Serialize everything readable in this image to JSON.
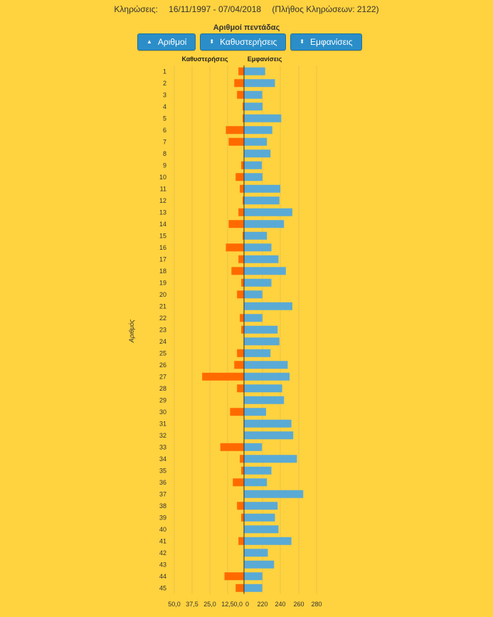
{
  "header": {
    "draws_label": "Κληρώσεις:",
    "date_range": "16/11/1997 - 07/04/2018",
    "draws_count": "(Πλήθος Κληρώσεων: 2122)"
  },
  "buttons": {
    "numbers": {
      "label": "Αριθμοί",
      "icon": "triangle-up-icon"
    },
    "delays": {
      "label": "Καθυστερήσεις",
      "icon": "sort-updown-icon"
    },
    "appearances": {
      "label": "Εμφανίσεις",
      "icon": "sort-updown-icon"
    }
  },
  "colors": {
    "background": "#ffd23f",
    "delays": "#ff6a00",
    "appearances": "#5aaad6",
    "button": "#2b8ec9"
  },
  "chart_data": {
    "type": "bar",
    "title": "Αριθμοί πεντάδας",
    "ylabel": "Αριθμός",
    "left_header": "Καθυστερήσεις",
    "right_header": "Εμφανίσεις",
    "left_ticks": [
      "50,0",
      "37,5",
      "25,0",
      "12,5",
      "0,0"
    ],
    "right_ticks": [
      "0",
      "220",
      "240",
      "260",
      "280"
    ],
    "categories": [
      "1",
      "2",
      "3",
      "4",
      "5",
      "6",
      "7",
      "8",
      "9",
      "10",
      "11",
      "12",
      "13",
      "14",
      "15",
      "16",
      "17",
      "18",
      "19",
      "20",
      "21",
      "22",
      "23",
      "24",
      "25",
      "26",
      "27",
      "28",
      "29",
      "30",
      "31",
      "32",
      "33",
      "34",
      "35",
      "36",
      "37",
      "38",
      "39",
      "40",
      "41",
      "42",
      "43",
      "44",
      "45"
    ],
    "series": [
      {
        "name": "Καθυστερήσεις",
        "values": [
          4,
          7,
          5,
          1,
          1,
          13,
          11,
          0,
          2,
          6,
          3,
          1,
          4,
          11,
          1,
          13,
          4,
          9,
          2,
          5,
          0,
          3,
          2,
          0,
          5,
          7,
          30,
          5,
          0,
          10,
          0,
          0,
          17,
          3,
          2,
          8,
          0,
          5,
          2,
          0,
          4,
          0,
          0,
          14,
          6
        ]
      },
      {
        "name": "Εμφανίσεις",
        "values": [
          223,
          234,
          216,
          220,
          241,
          231,
          225,
          229,
          212,
          219,
          240,
          239,
          253,
          244,
          225,
          230,
          238,
          246,
          230,
          218,
          253,
          218,
          237,
          239,
          229,
          248,
          250,
          242,
          244,
          224,
          252,
          254,
          213,
          258,
          230,
          225,
          265,
          237,
          234,
          238,
          252,
          226,
          233,
          218,
          216
        ]
      }
    ]
  }
}
